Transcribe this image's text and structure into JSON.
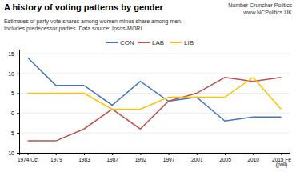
{
  "chart_data": {
    "type": "line",
    "title": "A history of voting patterns by gender",
    "subtitle": [
      "Estimates of party vote shares among women minus share among men.",
      "Includes predecessor parties. Data source: Ipsos-MORI"
    ],
    "annotations": [
      "Number Cruncher Politics",
      "www.NCPolitics.UK"
    ],
    "categories": [
      "1974 Oct",
      "1979",
      "1983",
      "1987",
      "1992",
      "1997",
      "2001",
      "2005",
      "2010",
      "2015 Fe\n(poll)"
    ],
    "series": [
      {
        "name": "CON",
        "color": "#4472C4",
        "values": [
          14,
          7,
          7,
          2,
          8,
          3,
          4,
          -2,
          -1,
          -1
        ]
      },
      {
        "name": "LAB",
        "color": "#C0504D",
        "values": [
          -7,
          -7,
          -4,
          1,
          -4,
          3,
          5,
          9,
          8,
          9
        ]
      },
      {
        "name": "LIB",
        "color": "#FFC000",
        "values": [
          5,
          5,
          5,
          1,
          1,
          4,
          4,
          4,
          9,
          1
        ]
      }
    ],
    "ylim": [
      -10,
      16
    ],
    "yticks": [
      -10,
      -5,
      0,
      5,
      10,
      15
    ],
    "grid": true,
    "legend": "top"
  }
}
